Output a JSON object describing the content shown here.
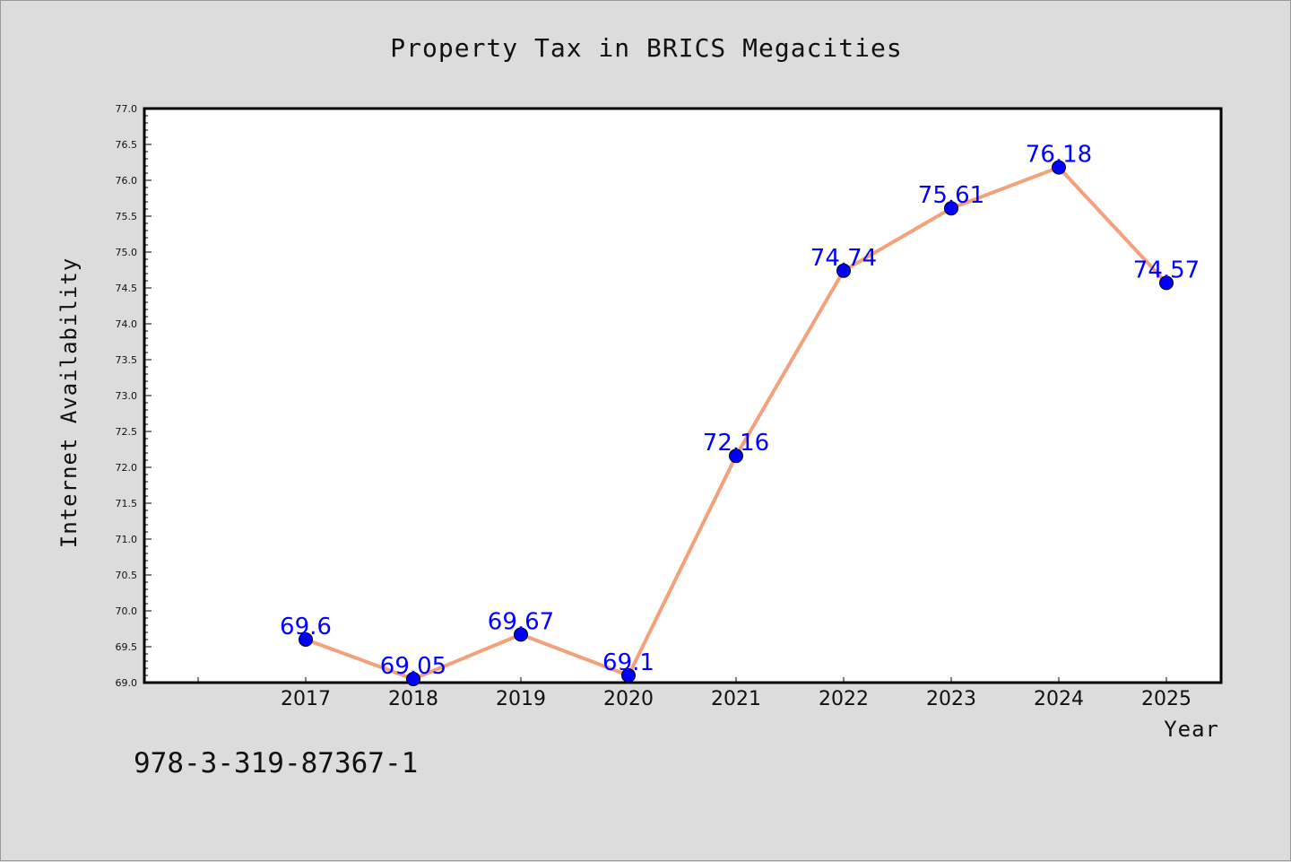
{
  "chart_data": {
    "type": "line",
    "title": "Property Tax in BRICS Megacities",
    "xlabel": "Year",
    "ylabel": "Internet Availability",
    "categories": [
      "2017",
      "2018",
      "2019",
      "2020",
      "2021",
      "2022",
      "2023",
      "2024",
      "2025"
    ],
    "values": [
      69.6,
      69.05,
      69.67,
      69.1,
      72.16,
      74.74,
      75.61,
      76.18,
      74.57
    ],
    "data_labels": [
      "69.6",
      "69.05",
      "69.67",
      "69.1",
      "72.16",
      "74.74",
      "75.61",
      "76.18",
      "74.57"
    ],
    "ylim": [
      69.0,
      77.0
    ],
    "yticks": [
      "69.0",
      "69.5",
      "70.0",
      "70.5",
      "71.0",
      "71.5",
      "72.0",
      "72.5",
      "73.0",
      "73.5",
      "74.0",
      "74.5",
      "75.0",
      "75.5",
      "76.0",
      "76.5",
      "77.0"
    ],
    "grid": false,
    "line_color": "#f4a07a",
    "marker_color": "#0000ff",
    "label_color": "#0000ff"
  },
  "footer": {
    "isbn": "978-3-319-87367-1"
  }
}
